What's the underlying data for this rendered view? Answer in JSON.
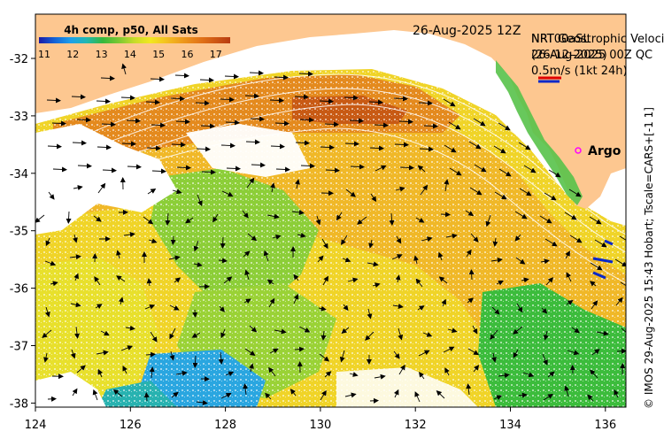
{
  "header": {
    "date_label": "26-Aug-2025 12Z",
    "product_line1": "NRT00aSL",
    "product_line2": "(26-12-2025)",
    "velocity_line1": "NRT Geostrophic Velocity",
    "velocity_line2": "26-Aug-2025 00Z QC",
    "scale_label": "0.5m/s (1kt 24h)"
  },
  "colorbar": {
    "title": "4h comp, p50, All Sats",
    "ticks": [
      "11",
      "12",
      "13",
      "14",
      "15",
      "16",
      "17"
    ],
    "colors": [
      "#1a1aa6",
      "#1464d8",
      "#1ea0ea",
      "#22b8b0",
      "#36b83c",
      "#7ac832",
      "#c8dc28",
      "#f2e820",
      "#f4c020",
      "#ee9a1c",
      "#e47818",
      "#d05a14",
      "#b83c12"
    ]
  },
  "map": {
    "land_color": "#fdc790",
    "x_ticks": [
      "124",
      "126",
      "128",
      "130",
      "132",
      "134",
      "136"
    ],
    "y_ticks": [
      "-32",
      "-33",
      "-34",
      "-35",
      "-36",
      "-37",
      "-38"
    ],
    "argo_label": "Argo",
    "argo_color": "#ff00ff"
  },
  "credit": "© IMOS 29-Aug-2025 15:43 Hobart; Tscale=CARS+[-1 1]"
}
